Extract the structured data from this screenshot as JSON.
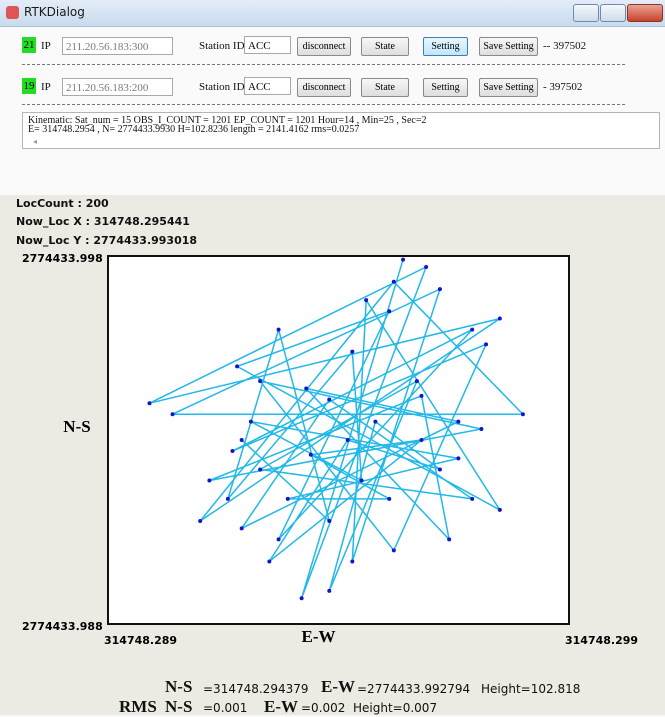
{
  "window": {
    "title": "RTKDialog"
  },
  "connections": [
    {
      "id": "21",
      "ip_label": "IP",
      "ip": "211.20.56.183:300",
      "station_label": "Station ID",
      "station": "ACC",
      "buttons": [
        "disconnect",
        "State",
        "Setting",
        "Save Setting"
      ],
      "status": "-- 397502"
    },
    {
      "id": "19",
      "ip_label": "IP",
      "ip": "211.20.56.183:200",
      "station_label": "Station ID",
      "station": "ACC",
      "buttons": [
        "disconnect",
        "State",
        "Setting",
        "Save Setting"
      ],
      "status": "- 397502"
    }
  ],
  "log": {
    "lines": [
      "Kinematic:  Sat_num = 15  OBS_I_COUNT = 1201  EP_COUNT = 1201  Hour=14 , Min=25 , Sec=2",
      "E= 314748.2954 , N= 2774433.9930 H=102.8236 length = 2141.4162 rms=0.0257"
    ]
  },
  "info": [
    "LocCount : 200",
    "Now_Loc X : 314748.295441",
    "Now_Loc Y : 2774433.993018"
  ],
  "chart_data": {
    "type": "line",
    "x_label": "E-W",
    "y_label": "N-S",
    "color": "#22b8e8",
    "marker_color": "#1414c8",
    "xlim": [
      314748.289,
      314748.299
    ],
    "ylim": [
      2774433.988,
      2774433.998
    ],
    "xticks": [
      314748.289,
      314748.299
    ],
    "yticks": [
      2774433.998,
      2774433.988
    ],
    "x": [
      314748.2954,
      314748.2932,
      314748.2959,
      314748.2899,
      314748.2975,
      314748.291,
      314748.2952,
      314748.298,
      314748.2904,
      314748.2962,
      314748.2943,
      314748.2946,
      314748.2975,
      314748.2918,
      314748.2951,
      314748.2927,
      314748.2969,
      314748.2917,
      314748.2972,
      314748.2952,
      314748.2923,
      314748.2971,
      314748.2912,
      314748.2958,
      314748.2964,
      314748.2933,
      314748.2966,
      314748.2919,
      314748.2938,
      314748.2969,
      314748.2923,
      314748.2957,
      314748.2938,
      314748.2948,
      314748.2962,
      314748.2942,
      314748.2925,
      314748.2958,
      314748.2934,
      314748.2951,
      314748.2929,
      314748.2966,
      314748.2921,
      314748.2945,
      314748.2943,
      314748.2916,
      314748.2927,
      314748.2938,
      314748.2919
    ],
    "values": [
      2774433.9979,
      2774433.9887,
      2774433.9977,
      2774433.994,
      2774433.9963,
      2774433.9908,
      2774433.9973,
      2774433.9937,
      2774433.9937,
      2774433.9971,
      2774433.9897,
      2774433.9968,
      2774433.9911,
      2774433.995,
      2774433.9965,
      2774433.9903,
      2774433.996,
      2774433.9927,
      2774433.9956,
      2774433.99,
      2774433.9946,
      2774433.9933,
      2774433.9919,
      2774433.9942,
      2774433.9903,
      2774433.9944,
      2774433.9935,
      2774433.9906,
      2774433.9941,
      2774433.9914,
      2774433.9922,
      2774433.9946,
      2774433.9889,
      2774433.9935,
      2774433.9922,
      2774433.993,
      2774433.9897,
      2774433.993,
      2774433.9926,
      2774433.9914,
      2774433.9914,
      2774433.9925,
      2774433.9935,
      2774433.9919,
      2774433.9954,
      2774433.9914,
      2774433.996,
      2774433.9908,
      2774433.993
    ]
  },
  "summary": {
    "row1": [
      "N-S",
      "=314748.294379",
      "E-W",
      "=2774433.992794",
      "Height=102.818"
    ],
    "row2": [
      "RMS",
      "N-S",
      "=0.001",
      "E-W",
      "=0.002",
      "Height=0.007"
    ]
  }
}
